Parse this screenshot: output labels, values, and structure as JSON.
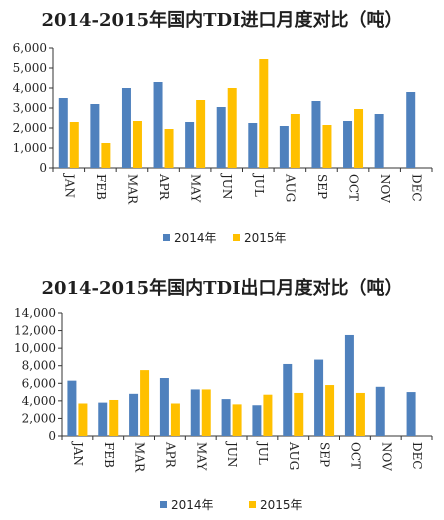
{
  "colors": {
    "s2014": "#4F81BD",
    "s2015": "#FFC000",
    "axis": "#333333"
  },
  "chart_data": [
    {
      "type": "bar",
      "title": "2014-2015年国内TDI进口月度对比（吨）",
      "categories": [
        "JAN",
        "FEB",
        "MAR",
        "APR",
        "MAY",
        "JUN",
        "JUL",
        "AUG",
        "SEP",
        "OCT",
        "NOV",
        "DEC"
      ],
      "ylim": [
        0,
        6000
      ],
      "yticks": [
        "0",
        "1,000",
        "2,000",
        "3,000",
        "4,000",
        "5,000",
        "6,000"
      ],
      "grid": false,
      "legend_position": "bottom",
      "series": [
        {
          "name": "2014年",
          "values": [
            3500,
            3200,
            4000,
            4300,
            2300,
            3050,
            2250,
            2100,
            3350,
            2350,
            2700,
            3800
          ]
        },
        {
          "name": "2015年",
          "values": [
            2300,
            1250,
            2350,
            1950,
            3400,
            4000,
            5450,
            2700,
            2150,
            2950,
            null,
            null
          ]
        }
      ]
    },
    {
      "type": "bar",
      "title": "2014-2015年国内TDI出口月度对比（吨）",
      "categories": [
        "JAN",
        "FEB",
        "MAR",
        "APR",
        "MAY",
        "JUN",
        "JUL",
        "AUG",
        "SEP",
        "OCT",
        "NOV",
        "DEC"
      ],
      "ylim": [
        0,
        14000
      ],
      "yticks": [
        "0",
        "2,000",
        "4,000",
        "6,000",
        "8,000",
        "10,000",
        "12,000",
        "14,000"
      ],
      "grid": false,
      "legend_position": "bottom",
      "series": [
        {
          "name": "2014年",
          "values": [
            6300,
            3800,
            4800,
            6600,
            5300,
            4200,
            3500,
            8200,
            8700,
            11500,
            5600,
            5000
          ]
        },
        {
          "name": "2015年",
          "values": [
            3700,
            4100,
            7500,
            3700,
            5300,
            3600,
            4700,
            4900,
            5800,
            4900,
            null,
            null
          ]
        }
      ]
    }
  ]
}
